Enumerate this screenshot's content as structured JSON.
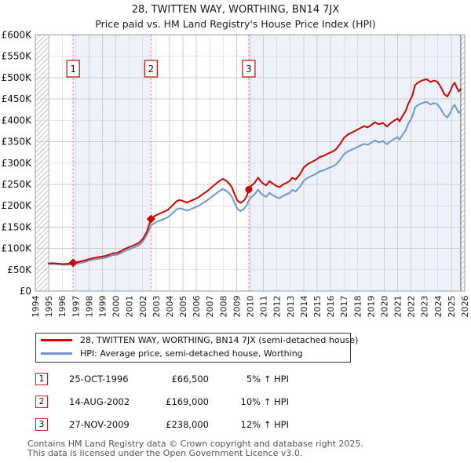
{
  "header": {
    "title": "28, TWITTEN WAY, WORTHING, BN14 7JX",
    "subtitle": "Price paid vs. HM Land Registry's House Price Index (HPI)"
  },
  "chart_data": {
    "type": "line",
    "title": "28, TWITTEN WAY, WORTHING, BN14 7JX",
    "subtitle": "Price paid vs. HM Land Registry's House Price Index (HPI)",
    "x_axis": {
      "min": 1994,
      "max": 2026,
      "tick_labels": [
        1994,
        1995,
        1996,
        1997,
        1998,
        1999,
        2000,
        2001,
        2002,
        2003,
        2004,
        2005,
        2006,
        2007,
        2008,
        2009,
        2010,
        2011,
        2012,
        2013,
        2014,
        2015,
        2016,
        2017,
        2018,
        2019,
        2020,
        2021,
        2022,
        2023,
        2024,
        2025,
        2026
      ]
    },
    "y_axis": {
      "min": 0,
      "max": 600000,
      "tick_step": 50000,
      "tick_labels": [
        "£0",
        "£50K",
        "£100K",
        "£150K",
        "£200K",
        "£250K",
        "£300K",
        "£350K",
        "£400K",
        "£450K",
        "£500K",
        "£550K",
        "£600K"
      ]
    },
    "grid": true,
    "legend_position": "below",
    "shaded_bands": [
      [
        1996.816,
        2002.619
      ],
      [
        2009.907,
        2025.7
      ]
    ],
    "hatched_regions": [
      [
        1994,
        1995
      ],
      [
        2025.7,
        2026
      ]
    ],
    "series": [
      {
        "name": "28, TWITTEN WAY, WORTHING, BN14 7JX (semi-detached house)",
        "color": "#cc0000",
        "points": [
          [
            1995.0,
            65000
          ],
          [
            1995.3,
            65500
          ],
          [
            1995.6,
            64800
          ],
          [
            1995.9,
            64000
          ],
          [
            1996.15,
            63400
          ],
          [
            1996.5,
            64300
          ],
          [
            1996.816,
            66500
          ],
          [
            1997.1,
            67800
          ],
          [
            1997.4,
            69800
          ],
          [
            1997.7,
            72000
          ],
          [
            1998.0,
            75000
          ],
          [
            1998.35,
            77800
          ],
          [
            1998.7,
            79500
          ],
          [
            1999.0,
            81000
          ],
          [
            1999.3,
            83000
          ],
          [
            1999.6,
            86500
          ],
          [
            1999.85,
            89000
          ],
          [
            2000.1,
            89500
          ],
          [
            2000.4,
            94000
          ],
          [
            2000.7,
            99500
          ],
          [
            2001.0,
            103000
          ],
          [
            2001.35,
            107500
          ],
          [
            2001.7,
            112500
          ],
          [
            2002.0,
            122000
          ],
          [
            2002.3,
            138000
          ],
          [
            2002.619,
            169000
          ],
          [
            2002.9,
            176000
          ],
          [
            2003.2,
            181000
          ],
          [
            2003.6,
            186000
          ],
          [
            2003.9,
            191000
          ],
          [
            2004.2,
            200000
          ],
          [
            2004.5,
            210000
          ],
          [
            2004.75,
            213500
          ],
          [
            2005.0,
            211000
          ],
          [
            2005.3,
            207500
          ],
          [
            2005.6,
            211500
          ],
          [
            2005.9,
            215500
          ],
          [
            2006.2,
            220500
          ],
          [
            2006.5,
            227500
          ],
          [
            2006.8,
            234000
          ],
          [
            2007.1,
            242000
          ],
          [
            2007.4,
            250000
          ],
          [
            2007.7,
            257500
          ],
          [
            2007.95,
            263000
          ],
          [
            2008.2,
            259000
          ],
          [
            2008.45,
            252000
          ],
          [
            2008.65,
            243000
          ],
          [
            2008.85,
            227000
          ],
          [
            2009.05,
            212000
          ],
          [
            2009.3,
            206500
          ],
          [
            2009.55,
            212000
          ],
          [
            2009.75,
            222000
          ],
          [
            2009.907,
            238000
          ],
          [
            2010.1,
            247000
          ],
          [
            2010.35,
            254000
          ],
          [
            2010.6,
            266000
          ],
          [
            2010.8,
            257000
          ],
          [
            2011.0,
            251500
          ],
          [
            2011.2,
            247500
          ],
          [
            2011.45,
            257500
          ],
          [
            2011.7,
            251500
          ],
          [
            2011.95,
            246500
          ],
          [
            2012.2,
            243500
          ],
          [
            2012.45,
            249500
          ],
          [
            2012.7,
            253500
          ],
          [
            2012.95,
            257500
          ],
          [
            2013.15,
            265500
          ],
          [
            2013.4,
            261500
          ],
          [
            2013.7,
            272500
          ],
          [
            2014.0,
            289500
          ],
          [
            2014.3,
            297500
          ],
          [
            2014.6,
            302500
          ],
          [
            2014.9,
            307500
          ],
          [
            2015.2,
            314000
          ],
          [
            2015.5,
            317000
          ],
          [
            2015.8,
            322000
          ],
          [
            2016.1,
            326000
          ],
          [
            2016.4,
            332000
          ],
          [
            2016.7,
            344000
          ],
          [
            2017.0,
            359000
          ],
          [
            2017.3,
            367000
          ],
          [
            2017.6,
            371500
          ],
          [
            2017.9,
            376500
          ],
          [
            2018.2,
            381500
          ],
          [
            2018.5,
            386500
          ],
          [
            2018.75,
            383500
          ],
          [
            2019.0,
            388000
          ],
          [
            2019.3,
            395500
          ],
          [
            2019.6,
            390500
          ],
          [
            2019.9,
            394000
          ],
          [
            2020.2,
            385500
          ],
          [
            2020.5,
            394000
          ],
          [
            2020.75,
            399500
          ],
          [
            2021.0,
            404000
          ],
          [
            2021.15,
            397500
          ],
          [
            2021.35,
            409500
          ],
          [
            2021.6,
            422000
          ],
          [
            2021.8,
            439500
          ],
          [
            2021.95,
            448500
          ],
          [
            2022.1,
            458000
          ],
          [
            2022.3,
            482500
          ],
          [
            2022.55,
            489000
          ],
          [
            2022.8,
            493000
          ],
          [
            2023.0,
            495000
          ],
          [
            2023.2,
            496000
          ],
          [
            2023.45,
            489500
          ],
          [
            2023.7,
            493500
          ],
          [
            2023.95,
            490500
          ],
          [
            2024.2,
            479000
          ],
          [
            2024.45,
            463000
          ],
          [
            2024.7,
            455500
          ],
          [
            2024.95,
            470000
          ],
          [
            2025.1,
            482000
          ],
          [
            2025.25,
            488000
          ],
          [
            2025.4,
            477500
          ],
          [
            2025.55,
            467500
          ],
          [
            2025.7,
            473000
          ]
        ]
      },
      {
        "name": "HPI: Average price, semi-detached house, Worthing",
        "color": "#6f97c9",
        "points": [
          [
            1995.0,
            63500
          ],
          [
            1995.3,
            64000
          ],
          [
            1995.6,
            63200
          ],
          [
            1995.9,
            62300
          ],
          [
            1996.15,
            61500
          ],
          [
            1996.5,
            62300
          ],
          [
            1996.816,
            63300
          ],
          [
            1997.1,
            64500
          ],
          [
            1997.4,
            66300
          ],
          [
            1997.7,
            68400
          ],
          [
            1998.0,
            71300
          ],
          [
            1998.35,
            74000
          ],
          [
            1998.7,
            75600
          ],
          [
            1999.0,
            77000
          ],
          [
            1999.3,
            79000
          ],
          [
            1999.6,
            82300
          ],
          [
            1999.85,
            84700
          ],
          [
            2000.1,
            85200
          ],
          [
            2000.4,
            89400
          ],
          [
            2000.7,
            94600
          ],
          [
            2001.0,
            98000
          ],
          [
            2001.35,
            102300
          ],
          [
            2001.7,
            107000
          ],
          [
            2002.0,
            116000
          ],
          [
            2002.3,
            131000
          ],
          [
            2002.619,
            153500
          ],
          [
            2002.9,
            160000
          ],
          [
            2003.2,
            164500
          ],
          [
            2003.6,
            169000
          ],
          [
            2003.9,
            173500
          ],
          [
            2004.2,
            182000
          ],
          [
            2004.5,
            191000
          ],
          [
            2004.75,
            194000
          ],
          [
            2005.0,
            192000
          ],
          [
            2005.3,
            188500
          ],
          [
            2005.6,
            192000
          ],
          [
            2005.9,
            196000
          ],
          [
            2006.2,
            200500
          ],
          [
            2006.5,
            207000
          ],
          [
            2006.8,
            212500
          ],
          [
            2007.1,
            220000
          ],
          [
            2007.4,
            227000
          ],
          [
            2007.7,
            234000
          ],
          [
            2007.95,
            239000
          ],
          [
            2008.2,
            235500
          ],
          [
            2008.45,
            229000
          ],
          [
            2008.65,
            221000
          ],
          [
            2008.85,
            206500
          ],
          [
            2009.05,
            192500
          ],
          [
            2009.3,
            187500
          ],
          [
            2009.55,
            192500
          ],
          [
            2009.75,
            201500
          ],
          [
            2009.907,
            212500
          ],
          [
            2010.1,
            220500
          ],
          [
            2010.35,
            227000
          ],
          [
            2010.6,
            237500
          ],
          [
            2010.8,
            229500
          ],
          [
            2011.0,
            224500
          ],
          [
            2011.2,
            221000
          ],
          [
            2011.45,
            230000
          ],
          [
            2011.7,
            224500
          ],
          [
            2011.95,
            220000
          ],
          [
            2012.2,
            217500
          ],
          [
            2012.45,
            223000
          ],
          [
            2012.7,
            226500
          ],
          [
            2012.95,
            230000
          ],
          [
            2013.15,
            237000
          ],
          [
            2013.4,
            233500
          ],
          [
            2013.7,
            243500
          ],
          [
            2014.0,
            258500
          ],
          [
            2014.3,
            265500
          ],
          [
            2014.6,
            270000
          ],
          [
            2014.9,
            274500
          ],
          [
            2015.2,
            280500
          ],
          [
            2015.5,
            283000
          ],
          [
            2015.8,
            287500
          ],
          [
            2016.1,
            291000
          ],
          [
            2016.4,
            296500
          ],
          [
            2016.7,
            307000
          ],
          [
            2017.0,
            320500
          ],
          [
            2017.3,
            327500
          ],
          [
            2017.6,
            331500
          ],
          [
            2017.9,
            336000
          ],
          [
            2018.2,
            340500
          ],
          [
            2018.5,
            345000
          ],
          [
            2018.75,
            342500
          ],
          [
            2019.0,
            346500
          ],
          [
            2019.3,
            353000
          ],
          [
            2019.6,
            348500
          ],
          [
            2019.9,
            351500
          ],
          [
            2020.2,
            344000
          ],
          [
            2020.5,
            351500
          ],
          [
            2020.75,
            356500
          ],
          [
            2021.0,
            360500
          ],
          [
            2021.15,
            355000
          ],
          [
            2021.35,
            365500
          ],
          [
            2021.6,
            376500
          ],
          [
            2021.8,
            392500
          ],
          [
            2021.95,
            400500
          ],
          [
            2022.1,
            409000
          ],
          [
            2022.3,
            430500
          ],
          [
            2022.55,
            436500
          ],
          [
            2022.8,
            440000
          ],
          [
            2023.0,
            442000
          ],
          [
            2023.2,
            443000
          ],
          [
            2023.45,
            437000
          ],
          [
            2023.7,
            440500
          ],
          [
            2023.95,
            438000
          ],
          [
            2024.2,
            427500
          ],
          [
            2024.45,
            413500
          ],
          [
            2024.7,
            406500
          ],
          [
            2024.95,
            419500
          ],
          [
            2025.1,
            430500
          ],
          [
            2025.25,
            436000
          ],
          [
            2025.4,
            426500
          ],
          [
            2025.55,
            417500
          ],
          [
            2025.7,
            422500
          ]
        ]
      }
    ],
    "sales": [
      {
        "n": "1",
        "date": "25-OCT-1996",
        "year": 1996.816,
        "price": 66500,
        "price_label": "£66,500",
        "hpi_label": "5% ↑ HPI",
        "marker": "diamond"
      },
      {
        "n": "2",
        "date": "14-AUG-2002",
        "year": 2002.619,
        "price": 169000,
        "price_label": "£169,000",
        "hpi_label": "10% ↑ HPI",
        "marker": "diamond"
      },
      {
        "n": "3",
        "date": "27-NOV-2009",
        "year": 2009.907,
        "price": 238000,
        "price_label": "£238,000",
        "hpi_label": "12% ↑ HPI",
        "marker": "circle"
      }
    ],
    "colors": {
      "property_line": "#cc0000",
      "hpi_line": "#6f97c9",
      "sale_dashed": "#f09090",
      "band": "#edf1f9",
      "grid": "#cdcdcd",
      "axis_border": "#999999",
      "hatch": "#c4c4c4",
      "hatch_edge": "#777777",
      "marker": "#cc0000",
      "number_box_border": "#bb2222"
    }
  },
  "legend": {
    "items": [
      {
        "label": "28, TWITTEN WAY, WORTHING, BN14 7JX (semi-detached house)",
        "color": "#cc0000"
      },
      {
        "label": "HPI: Average price, semi-detached house, Worthing",
        "color": "#6f97c9"
      }
    ]
  },
  "footer": {
    "line1": "Contains HM Land Registry data © Crown copyright and database right 2025.",
    "line2": "This data is licensed under the Open Government Licence v3.0."
  }
}
